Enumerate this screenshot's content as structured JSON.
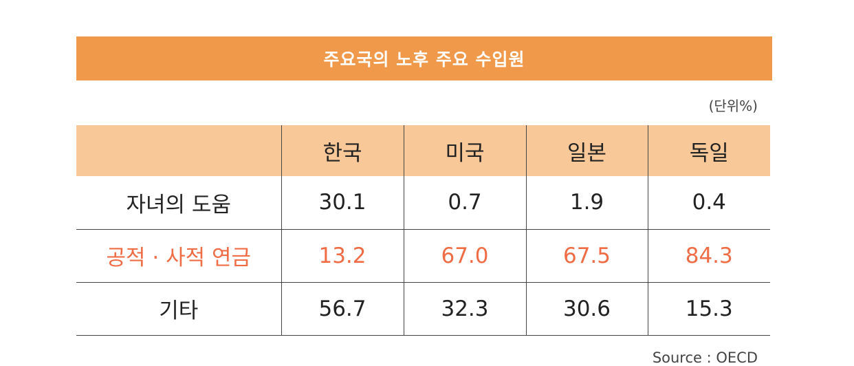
{
  "title": "주요국의 노후 주요 수입원",
  "unit": "(단위%)",
  "accent_color": "#ef6c45",
  "header_color": "#f0994a",
  "columns": [
    "",
    "한국",
    "미국",
    "일본",
    "독일"
  ],
  "rows": [
    {
      "label": "자녀의 도움",
      "values": [
        "30.1",
        "0.7",
        "1.9",
        "0.4"
      ]
    },
    {
      "label": "공적 · 사적 연금",
      "values": [
        "13.2",
        "67.0",
        "67.5",
        "84.3"
      ]
    },
    {
      "label": "기타",
      "values": [
        "56.7",
        "32.3",
        "30.6",
        "15.3"
      ]
    }
  ],
  "source": "Source : OECD"
}
